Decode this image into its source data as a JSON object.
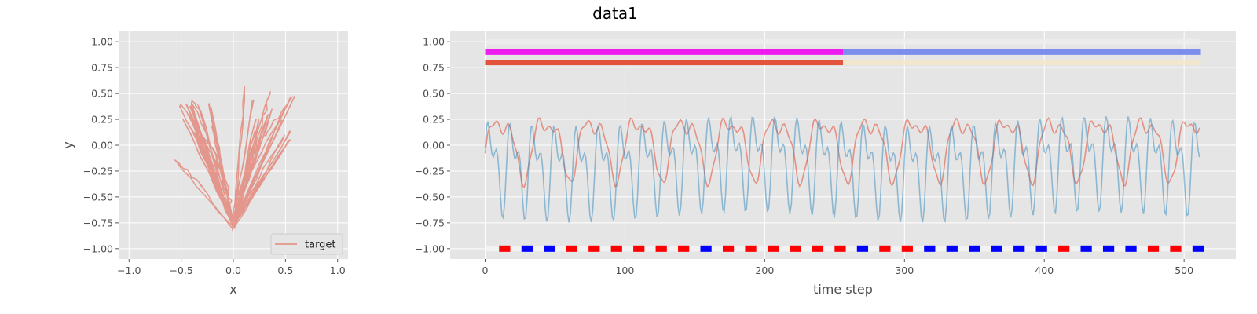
{
  "title": "data1",
  "colors": {
    "plot_bg": "#e5e5e5",
    "grid": "#ffffff",
    "target": "#e24a33",
    "blue_line": "#348abd",
    "magenta": "#ee11ee",
    "periwinkle": "#7788ee",
    "red_bar": "#e24a33",
    "marker_red": "#ff0000",
    "marker_blue": "#0000ff"
  },
  "chart_data": [
    {
      "type": "line",
      "panel": "xy-trajectory",
      "xlabel": "x",
      "ylabel": "y",
      "xlim": [
        -1.1,
        1.1
      ],
      "ylim": [
        -1.1,
        1.1
      ],
      "xticks": [
        "−1.0",
        "−0.5",
        "0.0",
        "0.5",
        "1.0"
      ],
      "xtick_values": [
        -1.0,
        -0.5,
        0.0,
        0.5,
        1.0
      ],
      "yticks": [
        "−1.00",
        "−0.75",
        "−0.50",
        "−0.25",
        "0.00",
        "0.25",
        "0.50",
        "0.75",
        "1.00"
      ],
      "ytick_values": [
        -1.0,
        -0.75,
        -0.5,
        -0.25,
        0.0,
        0.25,
        0.5,
        0.75,
        1.0
      ],
      "grid": true,
      "legend": {
        "placement": "lower-right",
        "entries": [
          "target"
        ]
      },
      "series": [
        {
          "name": "target",
          "description_points": [
            [
              0.0,
              -0.75
            ],
            [
              -0.2,
              -0.2
            ],
            [
              -0.45,
              0.4
            ],
            [
              -0.1,
              -0.3
            ],
            [
              0.0,
              -0.78
            ],
            [
              0.2,
              -0.1
            ],
            [
              0.35,
              0.5
            ],
            [
              0.05,
              -0.5
            ],
            [
              0.0,
              -0.8
            ],
            [
              -0.3,
              0.3
            ],
            [
              -0.4,
              0.42
            ],
            [
              -0.05,
              -0.4
            ],
            [
              0.0,
              -0.76
            ],
            [
              0.3,
              0.1
            ],
            [
              0.55,
              0.45
            ],
            [
              0.1,
              -0.4
            ],
            [
              0.0,
              -0.77
            ],
            [
              -0.5,
              0.38
            ],
            [
              -0.15,
              -0.1
            ],
            [
              0.0,
              -0.8
            ],
            [
              0.12,
              0.58
            ],
            [
              0.02,
              -0.6
            ],
            [
              0.0,
              -0.8
            ],
            [
              -0.55,
              -0.15
            ],
            [
              -0.3,
              -0.4
            ],
            [
              0.0,
              -0.82
            ],
            [
              0.5,
              0.1
            ],
            [
              0.1,
              -0.55
            ],
            [
              0.0,
              -0.78
            ],
            [
              0.58,
              0.47
            ]
          ]
        }
      ]
    },
    {
      "type": "line",
      "panel": "time-series",
      "xlabel": "time step",
      "ylabel": "",
      "xlim": [
        -25,
        537
      ],
      "ylim": [
        -1.1,
        1.1
      ],
      "xticks": [
        "0",
        "100",
        "200",
        "300",
        "400",
        "500"
      ],
      "xtick_values": [
        0,
        100,
        200,
        300,
        400,
        500
      ],
      "yticks": [
        "−1.00",
        "−0.75",
        "−0.50",
        "−0.25",
        "0.00",
        "0.25",
        "0.50",
        "0.75",
        "1.00"
      ],
      "ytick_values": [
        -1.0,
        -0.75,
        -0.5,
        -0.25,
        0.0,
        0.25,
        0.5,
        0.75,
        1.0
      ],
      "grid": true,
      "n_steps": 512,
      "series": [
        {
          "name": "",
          "color_key": "target",
          "kind": "smooth-oscillation",
          "y_range": [
            -0.5,
            0.58
          ]
        },
        {
          "name": "",
          "color_key": "blue_line",
          "kind": "fast-oscillation",
          "y_range": [
            -0.82,
            0.58
          ]
        }
      ],
      "bands": [
        {
          "y": 0.9,
          "segments": [
            {
              "from": 0,
              "to": 256,
              "color_key": "magenta"
            },
            {
              "from": 256,
              "to": 512,
              "color_key": "periwinkle"
            }
          ]
        },
        {
          "y": 0.8,
          "segments": [
            {
              "from": 0,
              "to": 256,
              "color_key": "red_bar"
            },
            {
              "from": 256,
              "to": 512,
              "color": "#f5e6c8"
            }
          ]
        },
        {
          "y": 1.0,
          "segments": [
            {
              "from": 0,
              "to": 512,
              "color": "#eeeeee"
            }
          ]
        }
      ],
      "marker_row": {
        "y": -1.0,
        "colors": [
          "r",
          "b",
          "b",
          "r",
          "r",
          "r",
          "r",
          "r",
          "r",
          "b",
          "r",
          "r",
          "r",
          "r",
          "r",
          "r",
          "b",
          "r",
          "r",
          "b",
          "b",
          "b",
          "b",
          "b",
          "b",
          "r",
          "b",
          "b",
          "b",
          "r",
          "r",
          "b"
        ]
      }
    }
  ]
}
